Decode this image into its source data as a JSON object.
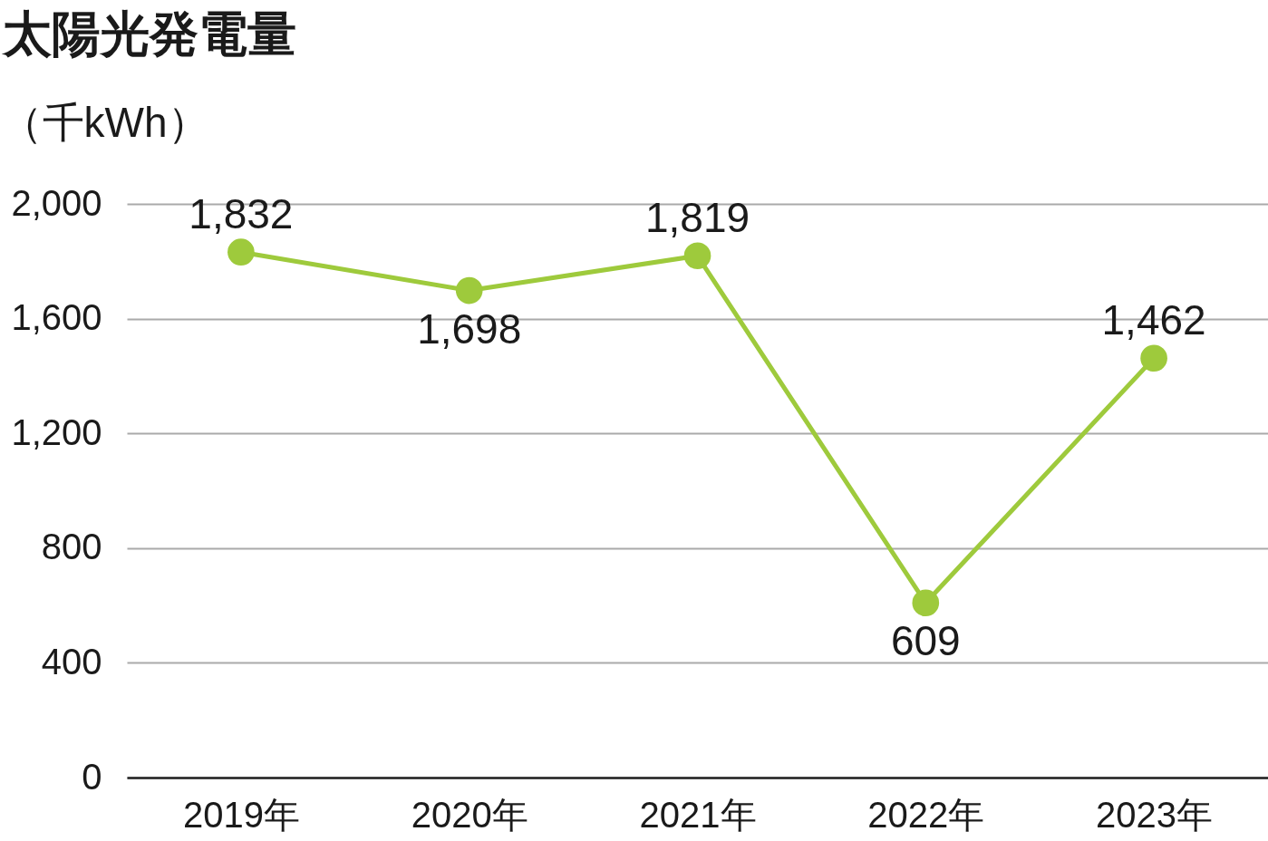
{
  "chart_data": {
    "type": "line",
    "title": "太陽光発電量",
    "ylabel": "（千kWh）",
    "categories": [
      "2019年",
      "2020年",
      "2021年",
      "2022年",
      "2023年"
    ],
    "series": [
      {
        "color": "#9eca3c",
        "values": [
          1832,
          1698,
          1819,
          609,
          1462
        ],
        "value_labels": [
          "1,832",
          "1,698",
          "1,819",
          "609",
          "1,462"
        ]
      }
    ],
    "ylim": [
      0,
      2000
    ],
    "yticks": [
      0,
      400,
      800,
      {
        "value": 1200,
        "label": "1,200"
      },
      {
        "value": 1600,
        "label": "1,600"
      },
      {
        "value": 2000,
        "label": "2,000"
      }
    ],
    "grid": "y",
    "marker": "circle",
    "line_style": "solid"
  }
}
